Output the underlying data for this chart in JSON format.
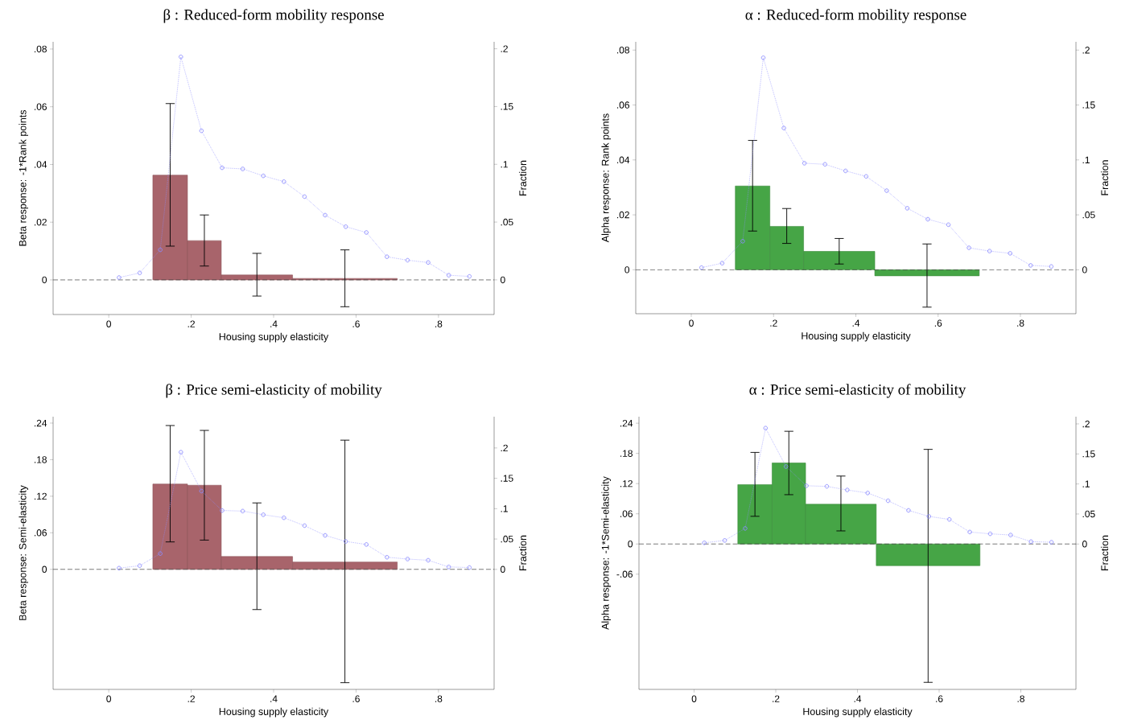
{
  "chart_data": [
    {
      "type": "histogram",
      "title": "β : Reduced-form mobility response",
      "xlabel": "Housing supply elasticity",
      "ylabel": "Beta response: -1*Rank points",
      "y2label": "Fraction",
      "xlim": [
        -0.135,
        0.935
      ],
      "xticks": [
        0,
        {
          "value": 0.2,
          "label": ".2"
        },
        {
          "value": 0.4,
          "label": ".4"
        },
        {
          "value": 0.6,
          "label": ".6"
        },
        {
          "value": 0.8,
          "label": ".8"
        }
      ],
      "ylim": [
        -0.012,
        0.0825
      ],
      "yticks": [
        0,
        {
          "value": 0.02,
          "label": ".02"
        },
        {
          "value": 0.04,
          "label": ".04"
        },
        {
          "value": 0.06,
          "label": ".06"
        },
        {
          "value": 0.08,
          "label": ".08"
        }
      ],
      "y2lim": [
        -0.03,
        0.206
      ],
      "y2ticks": [
        0,
        {
          "value": 0.05,
          "label": ".05"
        },
        {
          "value": 0.1,
          "label": ".1"
        },
        {
          "value": 0.15,
          "label": ".15"
        },
        {
          "value": 0.2,
          "label": ".2"
        }
      ],
      "bins": [
        0.107,
        0.191,
        0.273,
        0.446,
        0.7
      ],
      "series": [
        {
          "color": "#a8646b",
          "values": [
            0.0363,
            0.0136,
            0.0017,
            0.0005
          ],
          "errors": [
            [
              0.0117,
              0.0611
            ],
            [
              0.0048,
              0.0225
            ],
            [
              -0.0056,
              0.0092
            ],
            [
              -0.0093,
              0.0104
            ]
          ]
        },
        {
          "type": "line",
          "axis": "y2",
          "color": "#8c8cff",
          "marker": "circle",
          "line_style": "dotted",
          "x": [
            0.025,
            0.075,
            0.125,
            0.175,
            0.225,
            0.275,
            0.325,
            0.375,
            0.425,
            0.475,
            0.525,
            0.575,
            0.625,
            0.675,
            0.725,
            0.775,
            0.825,
            0.875
          ],
          "values": [
            0.002,
            0.006,
            0.026,
            0.193,
            0.129,
            0.097,
            0.096,
            0.09,
            0.085,
            0.072,
            0.056,
            0.046,
            0.041,
            0.02,
            0.017,
            0.015,
            0.004,
            0.003
          ]
        }
      ],
      "ref_lines": [
        {
          "axis": "y",
          "value": 0,
          "line_style": "dashed"
        }
      ]
    },
    {
      "type": "histogram",
      "title": "α : Reduced-form mobility response",
      "xlabel": "Housing supply elasticity",
      "ylabel": "Alpha response: Rank points",
      "y2label": "Fraction",
      "xlim": [
        -0.135,
        0.935
      ],
      "xticks": [
        0,
        {
          "value": 0.2,
          "label": ".2"
        },
        {
          "value": 0.4,
          "label": ".4"
        },
        {
          "value": 0.6,
          "label": ".6"
        },
        {
          "value": 0.8,
          "label": ".8"
        }
      ],
      "ylim": [
        -0.016,
        0.083
      ],
      "yticks": [
        0,
        {
          "value": 0.02,
          "label": ".02"
        },
        {
          "value": 0.04,
          "label": ".04"
        },
        {
          "value": 0.06,
          "label": ".06"
        },
        {
          "value": 0.08,
          "label": ".08"
        }
      ],
      "y2lim": [
        -0.04,
        0.2075
      ],
      "y2ticks": [
        0,
        {
          "value": 0.05,
          "label": ".05"
        },
        {
          "value": 0.1,
          "label": ".1"
        },
        {
          "value": 0.15,
          "label": ".15"
        },
        {
          "value": 0.2,
          "label": ".2"
        }
      ],
      "bins": [
        0.107,
        0.191,
        0.273,
        0.446,
        0.7
      ],
      "series": [
        {
          "color": "#46a546",
          "values": [
            0.0305,
            0.0158,
            0.0067,
            -0.0022
          ],
          "errors": [
            [
              0.0141,
              0.0471
            ],
            [
              0.0096,
              0.0223
            ],
            [
              0.0021,
              0.0114
            ],
            [
              -0.0136,
              0.0094
            ]
          ]
        },
        {
          "type": "line",
          "axis": "y2",
          "color": "#8c8cff",
          "marker": "circle",
          "line_style": "dotted",
          "x": [
            0.025,
            0.075,
            0.125,
            0.175,
            0.225,
            0.275,
            0.325,
            0.375,
            0.425,
            0.475,
            0.525,
            0.575,
            0.625,
            0.675,
            0.725,
            0.775,
            0.825,
            0.875
          ],
          "values": [
            0.002,
            0.006,
            0.026,
            0.193,
            0.129,
            0.097,
            0.096,
            0.09,
            0.085,
            0.072,
            0.056,
            0.046,
            0.041,
            0.02,
            0.017,
            0.015,
            0.004,
            0.003
          ]
        }
      ],
      "ref_lines": [
        {
          "axis": "y",
          "value": 0,
          "line_style": "dashed"
        }
      ]
    },
    {
      "type": "histogram",
      "title": "β : Price semi-elasticity of mobility",
      "xlabel": "Housing supply elasticity",
      "ylabel": "Beta response: Semi-elasticity",
      "y2label": "Fraction",
      "xlim": [
        -0.135,
        0.935
      ],
      "xticks": [
        0,
        {
          "value": 0.2,
          "label": ".2"
        },
        {
          "value": 0.4,
          "label": ".4"
        },
        {
          "value": 0.6,
          "label": ".6"
        },
        {
          "value": 0.8,
          "label": ".8"
        }
      ],
      "ylim": [
        -0.197,
        0.2505
      ],
      "yticks": [
        0,
        {
          "value": 0.06,
          "label": ".06"
        },
        {
          "value": 0.12,
          "label": ".12"
        },
        {
          "value": 0.18,
          "label": ".18"
        },
        {
          "value": 0.24,
          "label": ".24"
        }
      ],
      "y2lim": [
        -0.1977,
        0.2515
      ],
      "y2ticks": [
        0,
        {
          "value": 0.05,
          "label": ".05"
        },
        {
          "value": 0.1,
          "label": ".1"
        },
        {
          "value": 0.15,
          "label": ".15"
        },
        {
          "value": 0.2,
          "label": ".2"
        }
      ],
      "bins": [
        0.107,
        0.191,
        0.273,
        0.446,
        0.7
      ],
      "series": [
        {
          "color": "#a8646b",
          "values": [
            0.14,
            0.138,
            0.021,
            0.012
          ],
          "errors": [
            [
              0.045,
              0.236
            ],
            [
              0.048,
              0.228
            ],
            [
              -0.066,
              0.109
            ],
            [
              -0.186,
              0.212
            ]
          ]
        },
        {
          "type": "line",
          "axis": "y2",
          "color": "#8c8cff",
          "marker": "circle",
          "line_style": "dotted",
          "x": [
            0.025,
            0.075,
            0.125,
            0.175,
            0.225,
            0.275,
            0.325,
            0.375,
            0.425,
            0.475,
            0.525,
            0.575,
            0.625,
            0.675,
            0.725,
            0.775,
            0.825,
            0.875
          ],
          "values": [
            0.002,
            0.006,
            0.026,
            0.193,
            0.129,
            0.097,
            0.096,
            0.09,
            0.085,
            0.072,
            0.056,
            0.046,
            0.041,
            0.02,
            0.017,
            0.015,
            0.004,
            0.003
          ]
        }
      ],
      "ref_lines": [
        {
          "axis": "y",
          "value": 0,
          "line_style": "dashed"
        }
      ]
    },
    {
      "type": "histogram",
      "title": "α : Price semi-elasticity of mobility",
      "xlabel": "Housing supply elasticity",
      "ylabel": "Alpha response: -1*Semi-elasticity",
      "y2label": "Fraction",
      "xlim": [
        -0.135,
        0.935
      ],
      "xticks": [
        0,
        {
          "value": 0.2,
          "label": ".2"
        },
        {
          "value": 0.4,
          "label": ".4"
        },
        {
          "value": 0.6,
          "label": ".6"
        },
        {
          "value": 0.8,
          "label": ".8"
        }
      ],
      "ylim": [
        -0.289,
        0.253
      ],
      "yticks": [
        {
          "value": -0.06,
          "label": "-.06"
        },
        0,
        {
          "value": 0.06,
          "label": ".06"
        },
        {
          "value": 0.12,
          "label": ".12"
        },
        {
          "value": 0.18,
          "label": ".18"
        },
        {
          "value": 0.24,
          "label": ".24"
        }
      ],
      "y2lim": [
        -0.242,
        0.212
      ],
      "y2ticks": [
        0,
        {
          "value": 0.05,
          "label": ".05"
        },
        {
          "value": 0.1,
          "label": ".1"
        },
        {
          "value": 0.15,
          "label": ".15"
        },
        {
          "value": 0.2,
          "label": ".2"
        }
      ],
      "bins": [
        0.107,
        0.191,
        0.273,
        0.446,
        0.7
      ],
      "series": [
        {
          "color": "#46a546",
          "values": [
            0.118,
            0.161,
            0.079,
            -0.043
          ],
          "errors": [
            [
              0.055,
              0.182
            ],
            [
              0.098,
              0.224
            ],
            [
              0.026,
              0.135
            ],
            [
              -0.275,
              0.188
            ]
          ]
        },
        {
          "type": "line",
          "axis": "y2",
          "color": "#8c8cff",
          "marker": "circle",
          "line_style": "dotted",
          "x": [
            0.025,
            0.075,
            0.125,
            0.175,
            0.225,
            0.275,
            0.325,
            0.375,
            0.425,
            0.475,
            0.525,
            0.575,
            0.625,
            0.675,
            0.725,
            0.775,
            0.825,
            0.875
          ],
          "values": [
            0.002,
            0.006,
            0.026,
            0.193,
            0.129,
            0.097,
            0.096,
            0.09,
            0.085,
            0.072,
            0.056,
            0.046,
            0.041,
            0.02,
            0.017,
            0.015,
            0.004,
            0.003
          ]
        }
      ],
      "ref_lines": [
        {
          "axis": "y",
          "value": 0,
          "line_style": "dashed"
        }
      ]
    }
  ]
}
